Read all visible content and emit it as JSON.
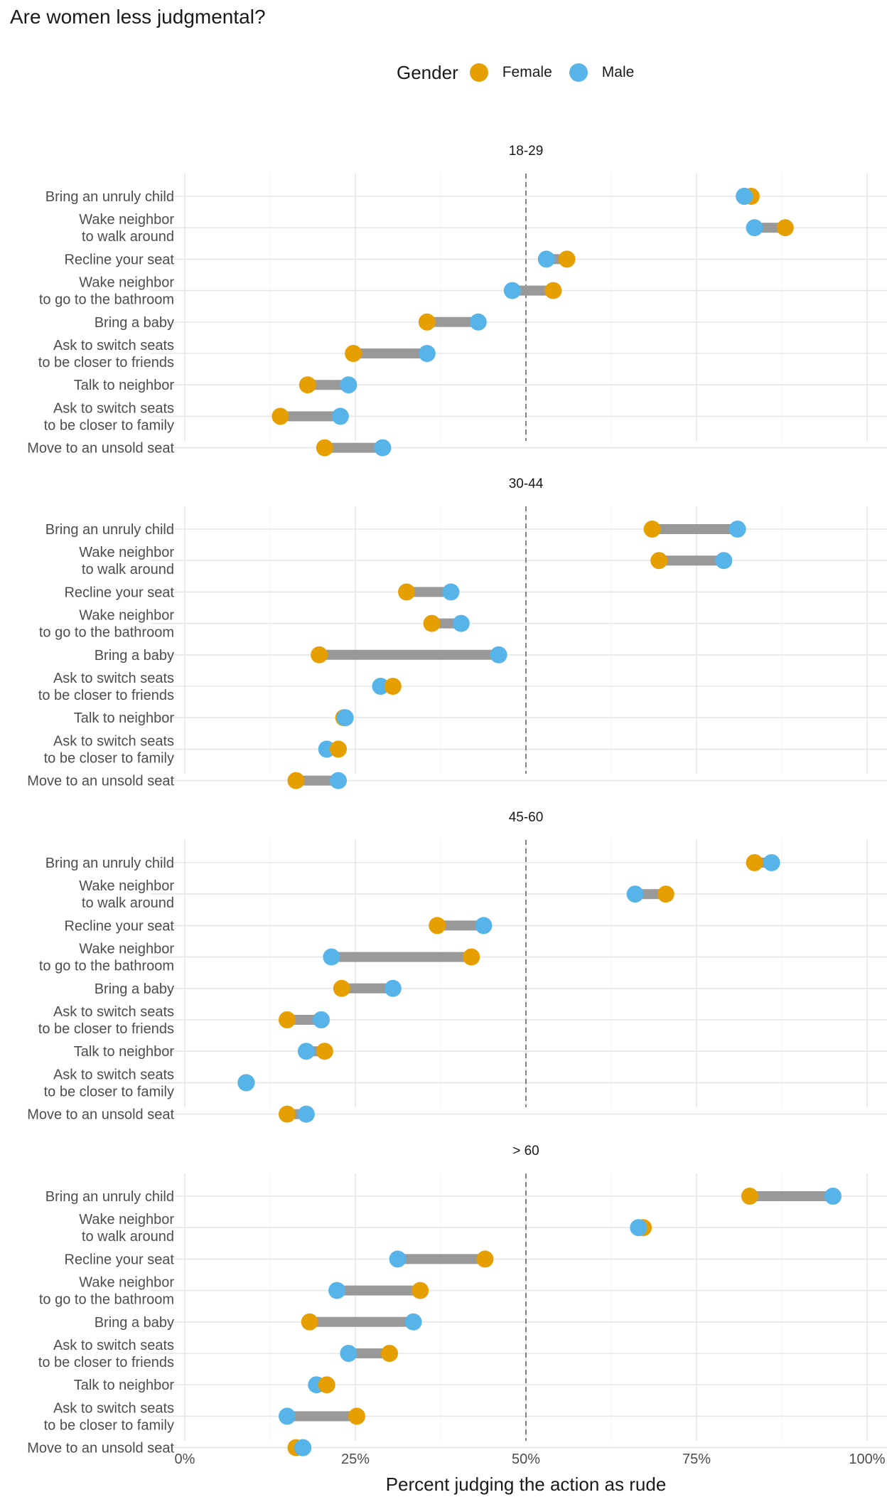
{
  "title": "Are women less judgmental?",
  "legend": {
    "title": "Gender",
    "items": [
      {
        "label": "Female",
        "color": "#E69F00"
      },
      {
        "label": "Male",
        "color": "#56B4E9"
      }
    ]
  },
  "chart_data": {
    "type": "dumbbell",
    "title": "Are women less judgmental?",
    "xlabel": "Percent judging the action as rude",
    "xlim": [
      0,
      1
    ],
    "x_ticks": [
      0,
      0.25,
      0.5,
      0.75,
      1
    ],
    "x_tick_labels": [
      "0%",
      "25%",
      "50%",
      "75%",
      "100%"
    ],
    "reference_line": 0.5,
    "categories": [
      [
        "Bring an unruly child"
      ],
      [
        "Wake neighbor",
        "to walk around"
      ],
      [
        "Recline your seat"
      ],
      [
        "Wake neighbor",
        "to go to the bathroom"
      ],
      [
        "Bring a baby"
      ],
      [
        "Ask to switch seats",
        "to be closer to friends"
      ],
      [
        "Talk to neighbor"
      ],
      [
        "Ask to switch seats",
        "to be closer to family"
      ],
      [
        "Move to an unsold seat"
      ]
    ],
    "colors": {
      "female": "#E69F00",
      "male": "#56B4E9",
      "segment": "#999999"
    },
    "panels": [
      {
        "label": "18-29",
        "female": [
          0.83,
          0.88,
          0.56,
          0.54,
          0.355,
          0.247,
          0.18,
          0.14,
          0.205
        ],
        "male": [
          0.82,
          0.835,
          0.53,
          0.48,
          0.43,
          0.355,
          0.24,
          0.228,
          0.29
        ]
      },
      {
        "label": "30-44",
        "female": [
          0.685,
          0.695,
          0.325,
          0.362,
          0.197,
          0.305,
          0.233,
          0.225,
          0.163
        ],
        "male": [
          0.81,
          0.79,
          0.39,
          0.405,
          0.46,
          0.287,
          0.235,
          0.208,
          0.225
        ]
      },
      {
        "label": "45-60",
        "female": [
          0.835,
          0.705,
          0.37,
          0.42,
          0.23,
          0.15,
          0.205,
          0.09,
          0.15
        ],
        "male": [
          0.86,
          0.66,
          0.438,
          0.215,
          0.305,
          0.2,
          0.178,
          0.09,
          0.178
        ]
      },
      {
        "label": "> 60",
        "female": [
          0.828,
          0.672,
          0.44,
          0.345,
          0.183,
          0.3,
          0.208,
          0.252,
          0.163
        ],
        "male": [
          0.95,
          0.665,
          0.312,
          0.223,
          0.335,
          0.24,
          0.193,
          0.15,
          0.173
        ]
      }
    ]
  }
}
